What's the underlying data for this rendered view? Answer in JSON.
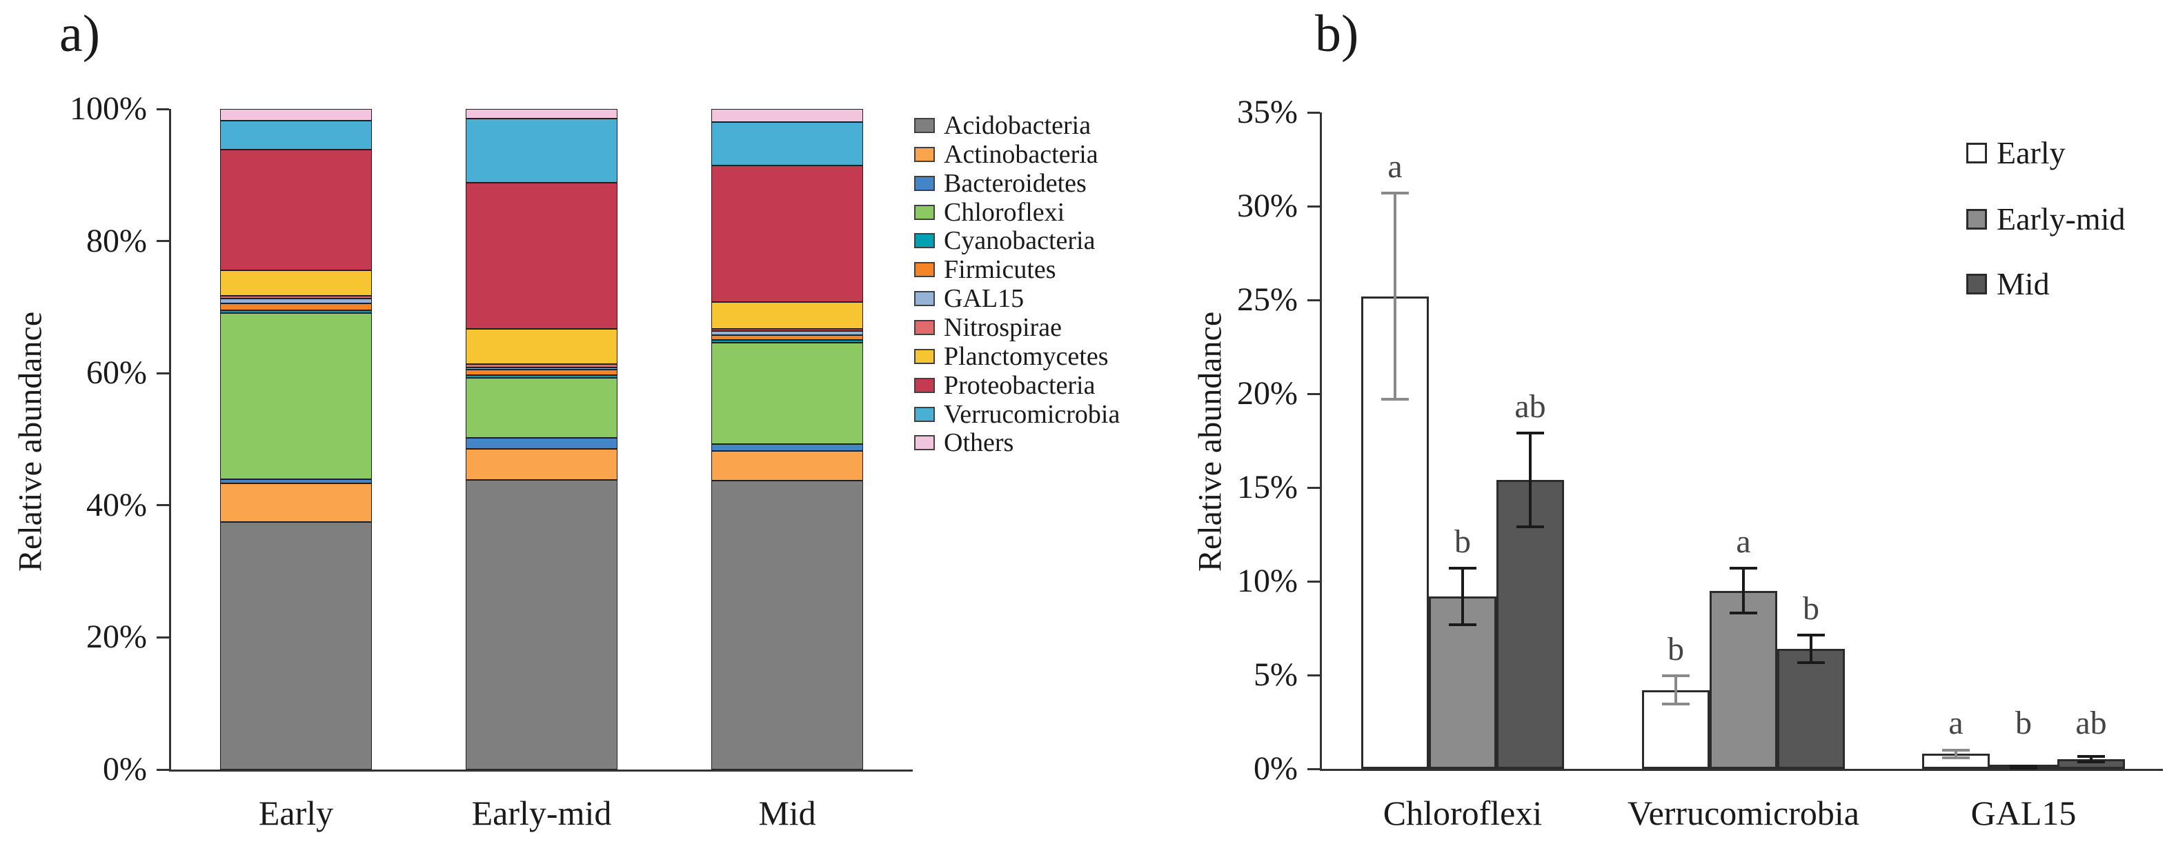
{
  "panel_a": {
    "title": "a)",
    "ylabel": "Relative abundance"
  },
  "panel_b": {
    "title": "b)",
    "ylabel": "Relative abundance"
  },
  "chart_data": [
    {
      "panel": "a",
      "type": "bar",
      "subtype": "stacked-100-percent",
      "title": "",
      "xlabel": "",
      "ylabel": "Relative abundance",
      "categories": [
        "Early",
        "Early-mid",
        "Mid"
      ],
      "ylim": [
        0,
        100
      ],
      "ytick_labels": [
        "0%",
        "20%",
        "40%",
        "60%",
        "80%",
        "100%"
      ],
      "grid": false,
      "legend_position": "right",
      "series": [
        {
          "name": "Acidobacteria",
          "color": "#7f7f7f",
          "values": [
            37.5,
            44.0,
            43.8
          ]
        },
        {
          "name": "Actinobacteria",
          "color": "#faa54e",
          "values": [
            5.8,
            4.7,
            4.5
          ]
        },
        {
          "name": "Bacteroidetes",
          "color": "#4385c6",
          "values": [
            0.7,
            1.6,
            1.0
          ]
        },
        {
          "name": "Chloroflexi",
          "color": "#8dc963",
          "values": [
            25.2,
            9.2,
            15.4
          ]
        },
        {
          "name": "Cyanobacteria",
          "color": "#00a0b4",
          "values": [
            0.4,
            0.4,
            0.4
          ]
        },
        {
          "name": "Firmicutes",
          "color": "#f58426",
          "values": [
            1.0,
            0.8,
            0.7
          ]
        },
        {
          "name": "GAL15",
          "color": "#95b3d7",
          "values": [
            0.8,
            0.1,
            0.6
          ]
        },
        {
          "name": "Nitrospirae",
          "color": "#e16a6d",
          "values": [
            0.3,
            0.5,
            0.3
          ]
        },
        {
          "name": "Planctomycetes",
          "color": "#f7c531",
          "values": [
            3.9,
            5.3,
            4.1
          ]
        },
        {
          "name": "Proteobacteria",
          "color": "#c43a50",
          "values": [
            18.3,
            22.2,
            20.6
          ]
        },
        {
          "name": "Verrucomicrobia",
          "color": "#49afd5",
          "values": [
            4.3,
            9.7,
            6.6
          ]
        },
        {
          "name": "Others",
          "color": "#f3c4dd",
          "values": [
            1.8,
            1.5,
            2.0
          ]
        }
      ]
    },
    {
      "panel": "b",
      "type": "bar",
      "subtype": "grouped-with-error-bars",
      "title": "",
      "xlabel": "",
      "ylabel": "Relative abundance",
      "categories": [
        "Chloroflexi",
        "Verrucomicrobia",
        "GAL15"
      ],
      "ylim": [
        0,
        35
      ],
      "ytick_labels": [
        "0%",
        "5%",
        "10%",
        "15%",
        "20%",
        "25%",
        "30%",
        "35%"
      ],
      "grid": false,
      "legend_position": "top-right-inside",
      "series": [
        {
          "name": "Early",
          "fill": "#ffffff",
          "border": "#2b2b2b",
          "error_color": "#8a8a8a",
          "values": [
            25.2,
            4.2,
            0.8
          ],
          "errors": [
            5.5,
            0.75,
            0.2
          ],
          "letters": [
            "a",
            "b",
            "a"
          ]
        },
        {
          "name": "Early-mid",
          "fill": "#8c8c8c",
          "border": "#2b2b2b",
          "error_color": "#1a1a1a",
          "values": [
            9.2,
            9.5,
            0.1
          ],
          "errors": [
            1.5,
            1.2,
            0.05
          ],
          "letters": [
            "b",
            "a",
            "b"
          ]
        },
        {
          "name": "Mid",
          "fill": "#575757",
          "border": "#2b2b2b",
          "error_color": "#1a1a1a",
          "values": [
            15.4,
            6.4,
            0.5
          ],
          "errors": [
            2.5,
            0.75,
            0.15
          ],
          "letters": [
            "ab",
            "b",
            "ab"
          ]
        }
      ]
    }
  ]
}
